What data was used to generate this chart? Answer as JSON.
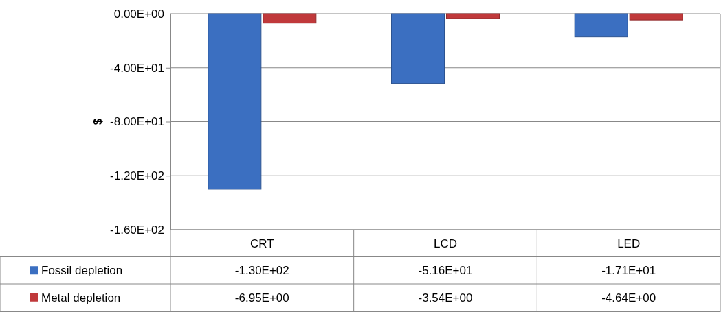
{
  "chart_data": {
    "type": "bar",
    "ylabel": "$",
    "categories": [
      "CRT",
      "LCD",
      "LED"
    ],
    "series": [
      {
        "name": "Fossil depletion",
        "color": "#3b6fc1",
        "values": [
          -130,
          -51.6,
          -17.1
        ],
        "value_labels": [
          "-1.30E+02",
          "-5.16E+01",
          "-1.71E+01"
        ]
      },
      {
        "name": "Metal depletion",
        "color": "#c0393b",
        "values": [
          -6.95,
          -3.54,
          -4.64
        ],
        "value_labels": [
          "-6.95E+00",
          "-3.54E+00",
          "-4.64E+00"
        ]
      }
    ],
    "ylim": [
      -160,
      0
    ],
    "yticks": [
      {
        "value": 0,
        "label": "0.00E+00"
      },
      {
        "value": -40,
        "label": "-4.00E+01"
      },
      {
        "value": -80,
        "label": "-8.00E+01"
      },
      {
        "value": -120,
        "label": "-1.20E+02"
      },
      {
        "value": -160,
        "label": "-1.60E+02"
      }
    ],
    "grid": "y",
    "legend": "bottom"
  }
}
